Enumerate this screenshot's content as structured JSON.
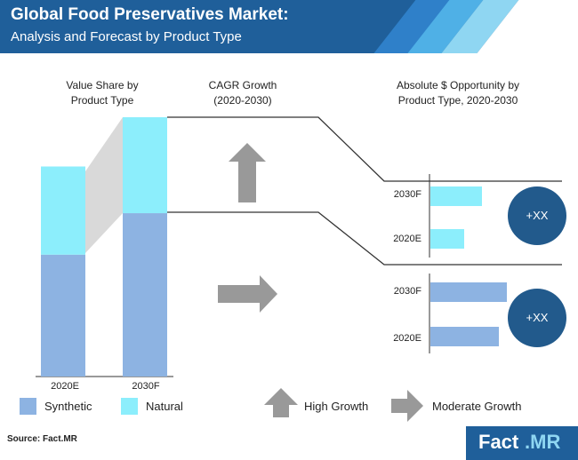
{
  "header": {
    "title": "Global Food Preservatives Market:",
    "subtitle": "Analysis and Forecast by Product Type"
  },
  "sections": {
    "value_share_title": "Value Share by\nProduct Type",
    "cagr_title": "CAGR Growth\n(2020-2030)",
    "opportunity_title": "Absolute $ Opportunity by\nProduct Type, 2020-2030"
  },
  "legend": {
    "synthetic": "Synthetic",
    "natural": "Natural",
    "high_growth": "High Growth",
    "moderate_growth": "Moderate Growth"
  },
  "colors": {
    "synthetic": "#8db3e2",
    "natural": "#8ceefc",
    "header": "#1f5f9a",
    "circle": "#225a8c",
    "arrow": "#999999"
  },
  "chart_data": [
    {
      "type": "bar",
      "stacked": true,
      "title": "Value Share by Product Type",
      "categories": [
        "2020E",
        "2030F"
      ],
      "series": [
        {
          "name": "Synthetic",
          "values": [
            47,
            63
          ]
        },
        {
          "name": "Natural",
          "values": [
            34,
            37
          ]
        }
      ]
    },
    {
      "type": "bar",
      "orientation": "horizontal",
      "title": "Absolute $ Opportunity by Product Type, 2020-2030",
      "groups": [
        {
          "series": "Natural",
          "growth": "High Growth",
          "categories": [
            "2030F",
            "2020E"
          ],
          "values": [
            58,
            38
          ],
          "opportunity": "+XX"
        },
        {
          "series": "Synthetic",
          "growth": "Moderate Growth",
          "categories": [
            "2030F",
            "2020E"
          ],
          "values": [
            86,
            77
          ],
          "opportunity": "+XX"
        }
      ]
    }
  ],
  "footer": {
    "source": "Source: Fact.MR",
    "logo_left": "Fact",
    "logo_right": ".MR"
  }
}
